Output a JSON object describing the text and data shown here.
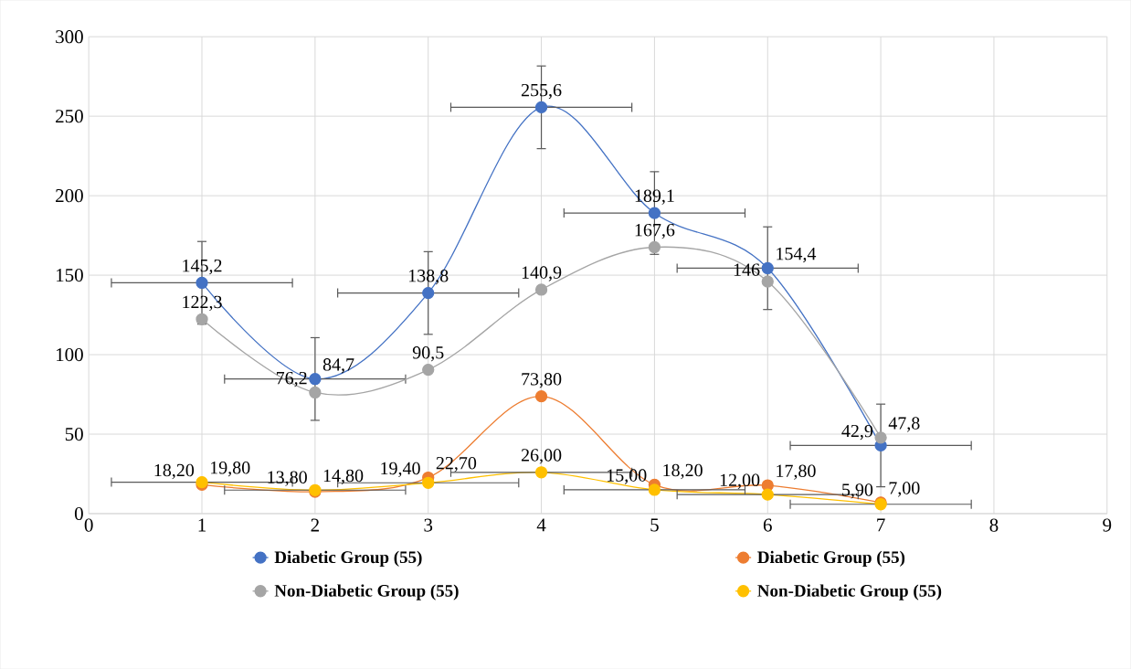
{
  "chart_data": {
    "type": "line",
    "x": [
      1,
      2,
      3,
      4,
      5,
      6,
      7
    ],
    "xlim": [
      0,
      9
    ],
    "xticks": [
      0,
      1,
      2,
      3,
      4,
      5,
      6,
      7,
      8,
      9
    ],
    "ylim": [
      0,
      300
    ],
    "yticks": [
      0,
      50,
      100,
      150,
      200,
      250,
      300
    ],
    "grid": true,
    "legend": "bottom",
    "marker": "circle",
    "line_style": "solid",
    "series": [
      {
        "name": "Diabetic Group (55)",
        "color": "#4472c4",
        "values": [
          145.2,
          84.7,
          138.8,
          255.6,
          189.1,
          154.4,
          42.9
        ],
        "value_labels": [
          "145,2",
          "84,7",
          "138,8",
          "255,6",
          "189,1",
          "154,4",
          "42,9"
        ],
        "errors": [
          26,
          26,
          26,
          26,
          26,
          26,
          26
        ],
        "xerrors": [
          0.8,
          0.8,
          0.8,
          0.8,
          0.8,
          0.8,
          0.8
        ]
      },
      {
        "name": "Diabetic Group (55)",
        "color": "#ed7d31",
        "values": [
          18.2,
          13.8,
          22.7,
          73.8,
          18.2,
          17.8,
          7.0
        ],
        "value_labels": [
          "18,20",
          "13,80",
          "22,70",
          "73,80",
          "18,20",
          "17,80",
          "7,00"
        ]
      },
      {
        "name": "Non-Diabetic Group (55)",
        "color": "#a5a5a5",
        "values": [
          122.3,
          76.2,
          90.5,
          140.9,
          167.6,
          146,
          47.8
        ],
        "value_labels": [
          "122,3",
          "76,2",
          "90,5",
          "140,9",
          "167,6",
          "146",
          "47,8"
        ]
      },
      {
        "name": "Non-Diabetic Group (55)",
        "color": "#ffc000",
        "values": [
          19.8,
          14.8,
          19.4,
          26.0,
          15.0,
          12.0,
          5.9
        ],
        "value_labels": [
          "19,80",
          "14,80",
          "19,40",
          "26,00",
          "15,00",
          "12,00",
          "5,90"
        ],
        "xerrors": [
          0.8,
          0.8,
          0.8,
          0.8,
          0.8,
          0.8,
          0.8
        ]
      }
    ]
  }
}
